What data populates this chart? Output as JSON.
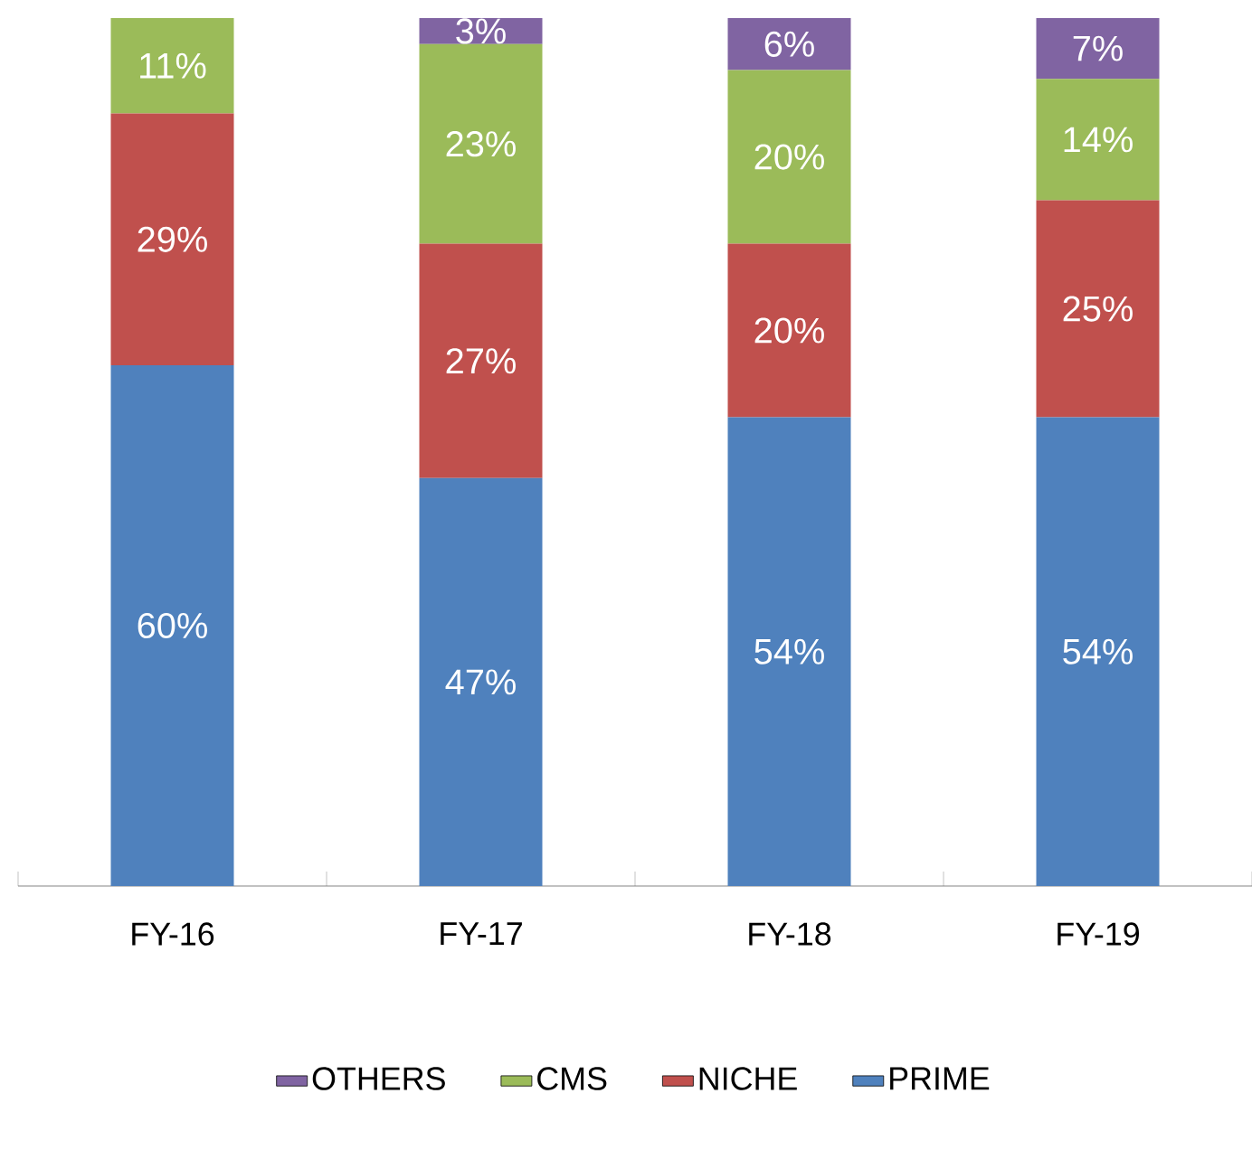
{
  "chart_data": {
    "type": "bar",
    "stacked": true,
    "categories": [
      "FY-16",
      "FY-17",
      "FY-18",
      "FY-19"
    ],
    "series": [
      {
        "name": "PRIME",
        "color": "#4f81bd",
        "values": [
          60,
          47,
          54,
          54
        ],
        "value_labels": [
          "60%",
          "47%",
          "54%",
          "54%"
        ]
      },
      {
        "name": "NICHE",
        "color": "#c0504d",
        "values": [
          29,
          27,
          20,
          25
        ],
        "value_labels": [
          "29%",
          "27%",
          "20%",
          "25%"
        ]
      },
      {
        "name": "CMS",
        "color": "#9bbb59",
        "values": [
          11,
          23,
          20,
          14
        ],
        "value_labels": [
          "11%",
          "23%",
          "20%",
          "14%"
        ]
      },
      {
        "name": "OTHERS",
        "color": "#8064a2",
        "values": [
          null,
          3,
          6,
          7
        ],
        "value_labels": [
          null,
          "3%",
          "6%",
          "7%"
        ]
      }
    ],
    "legend": "bottom"
  }
}
